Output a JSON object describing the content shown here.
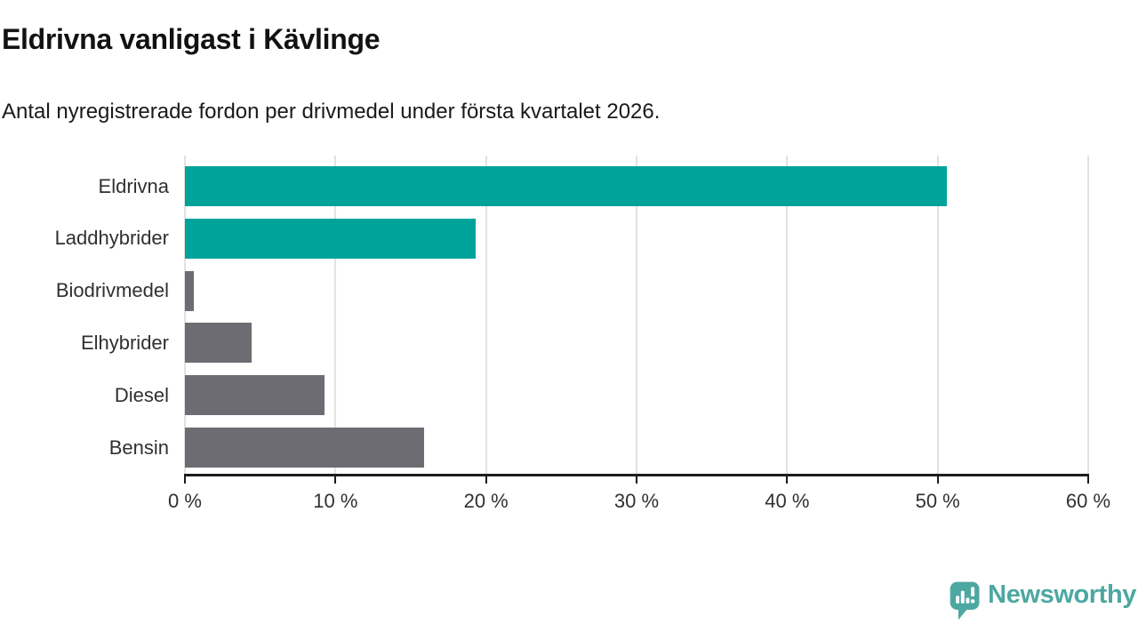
{
  "header": {
    "title": "Eldrivna vanligast i Kävlinge",
    "subtitle": "Antal nyregistrerade fordon per drivmedel under första kvartalet 2026."
  },
  "chart_data": {
    "type": "bar",
    "orientation": "horizontal",
    "title": "Eldrivna vanligast i Kävlinge",
    "subtitle": "Antal nyregistrerade fordon per drivmedel under första kvartalet 2026.",
    "categories": [
      "Eldrivna",
      "Laddhybrider",
      "Biodrivmedel",
      "Elhybrider",
      "Diesel",
      "Bensin"
    ],
    "values": [
      50.6,
      19.3,
      0.6,
      4.4,
      9.3,
      15.9
    ],
    "unit": "%",
    "highlighted": [
      true,
      true,
      false,
      false,
      false,
      false
    ],
    "xlim": [
      0,
      60
    ],
    "x_tick_values": [
      0,
      10,
      20,
      30,
      40,
      50,
      60
    ],
    "x_tick_labels": [
      "0 %",
      "10 %",
      "20 %",
      "30 %",
      "40 %",
      "50 %",
      "60 %"
    ],
    "grid": "vertical",
    "legend": "none",
    "colors": {
      "highlight": "#00a399",
      "default": "#6c6c72"
    }
  },
  "footer": {
    "brand": "Newsworthy",
    "brand_color": "#4ca8a1",
    "logo_icon": "newsworthy-pin-barchart-icon"
  }
}
